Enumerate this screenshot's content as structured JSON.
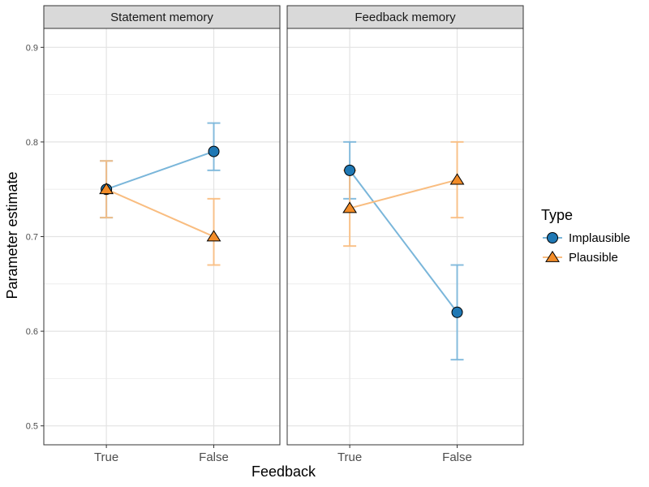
{
  "chart_data": {
    "type": "line",
    "facets": [
      "Statement memory",
      "Feedback memory"
    ],
    "xlabel": "Feedback",
    "ylabel": "Parameter estimate",
    "categories": [
      "True",
      "False"
    ],
    "ylim": [
      0.48,
      0.92
    ],
    "yticks": [
      0.5,
      0.6,
      0.7,
      0.8,
      0.9
    ],
    "ytick_labels": [
      "0.5",
      "0.6",
      "0.7",
      "0.8",
      "0.9"
    ],
    "legend_title": "Type",
    "legend_position": "right",
    "grid": true,
    "series": [
      {
        "name": "Implausible",
        "marker": "circle",
        "fill": "#1f78b4",
        "line": "#7ab6da",
        "facets": [
          {
            "values": [
              0.75,
              0.79
            ],
            "lower": [
              0.72,
              0.77
            ],
            "upper": [
              0.78,
              0.82
            ]
          },
          {
            "values": [
              0.77,
              0.62
            ],
            "lower": [
              0.74,
              0.57
            ],
            "upper": [
              0.8,
              0.67
            ]
          }
        ]
      },
      {
        "name": "Plausible",
        "marker": "triangle",
        "fill": "#f28c28",
        "line": "#f9bd80",
        "facets": [
          {
            "values": [
              0.75,
              0.7
            ],
            "lower": [
              0.72,
              0.67
            ],
            "upper": [
              0.78,
              0.74
            ]
          },
          {
            "values": [
              0.73,
              0.76
            ],
            "lower": [
              0.69,
              0.72
            ],
            "upper": [
              0.77,
              0.8
            ]
          }
        ]
      }
    ]
  }
}
